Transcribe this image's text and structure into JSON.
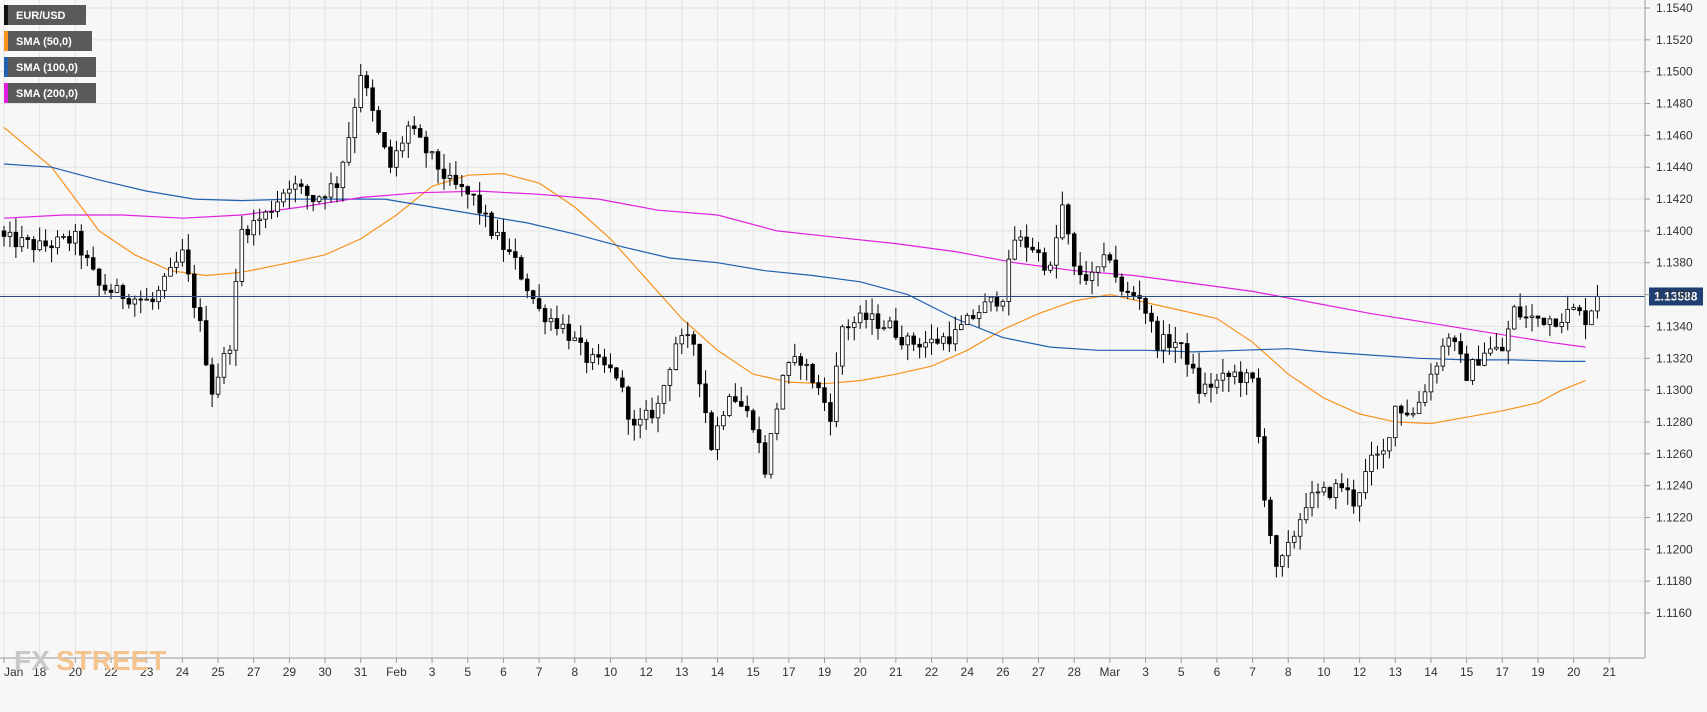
{
  "chart_data": {
    "type": "candlestick",
    "symbol": "EUR/USD",
    "timeframe": "4h",
    "ylim": [
      1.115,
      1.1545
    ],
    "y_ticks": [
      "1.1540",
      "1.1520",
      "1.1500",
      "1.1480",
      "1.1460",
      "1.1440",
      "1.1420",
      "1.1400",
      "1.1380",
      "1.1360",
      "1.1340",
      "1.1320",
      "1.1300",
      "1.1280",
      "1.1260",
      "1.1240",
      "1.1220",
      "1.1200",
      "1.1180",
      "1.1160"
    ],
    "y_tick_values": [
      1.154,
      1.152,
      1.15,
      1.148,
      1.146,
      1.144,
      1.142,
      1.14,
      1.138,
      1.136,
      1.134,
      1.132,
      1.13,
      1.128,
      1.126,
      1.124,
      1.122,
      1.12,
      1.118,
      1.116
    ],
    "x_ticks": [
      {
        "label": "Jan",
        "candle": 0
      },
      {
        "label": "18",
        "candle": 6
      },
      {
        "label": "20",
        "candle": 12
      },
      {
        "label": "22",
        "candle": 18
      },
      {
        "label": "23",
        "candle": 24
      },
      {
        "label": "24",
        "candle": 30
      },
      {
        "label": "25",
        "candle": 36
      },
      {
        "label": "27",
        "candle": 42
      },
      {
        "label": "29",
        "candle": 48
      },
      {
        "label": "30",
        "candle": 54
      },
      {
        "label": "31",
        "candle": 60
      },
      {
        "label": "Feb",
        "candle": 66
      },
      {
        "label": "3",
        "candle": 72
      },
      {
        "label": "5",
        "candle": 78
      },
      {
        "label": "6",
        "candle": 84
      },
      {
        "label": "7",
        "candle": 90
      },
      {
        "label": "8",
        "candle": 96
      },
      {
        "label": "10",
        "candle": 102
      },
      {
        "label": "12",
        "candle": 108
      },
      {
        "label": "13",
        "candle": 114
      },
      {
        "label": "14",
        "candle": 120
      },
      {
        "label": "15",
        "candle": 126
      },
      {
        "label": "17",
        "candle": 132
      },
      {
        "label": "19",
        "candle": 138
      },
      {
        "label": "20",
        "candle": 144
      },
      {
        "label": "21",
        "candle": 150
      },
      {
        "label": "22",
        "candle": 156
      },
      {
        "label": "24",
        "candle": 162
      },
      {
        "label": "26",
        "candle": 168
      },
      {
        "label": "27",
        "candle": 174
      },
      {
        "label": "28",
        "candle": 180
      },
      {
        "label": "Mar",
        "candle": 186
      },
      {
        "label": "3",
        "candle": 192
      },
      {
        "label": "5",
        "candle": 198
      },
      {
        "label": "6",
        "candle": 204
      },
      {
        "label": "7",
        "candle": 210
      },
      {
        "label": "8",
        "candle": 216
      },
      {
        "label": "10",
        "candle": 222
      },
      {
        "label": "12",
        "candle": 228
      },
      {
        "label": "13",
        "candle": 234
      },
      {
        "label": "14",
        "candle": 240
      },
      {
        "label": "15",
        "candle": 246
      },
      {
        "label": "17",
        "candle": 252
      },
      {
        "label": "19",
        "candle": 258
      },
      {
        "label": "20",
        "candle": 264
      },
      {
        "label": "21",
        "candle": 270
      }
    ],
    "grid": true,
    "current_price": "1.13588",
    "current_price_value": 1.13588,
    "legend": [
      {
        "label": "EUR/USD",
        "color": "#000000"
      },
      {
        "label": "SMA (50,0)",
        "color": "#f7931e"
      },
      {
        "label": "SMA (100,0)",
        "color": "#2060b0"
      },
      {
        "label": "SMA (200,0)",
        "color": "#e020e0"
      }
    ],
    "close_anchors": [
      [
        0,
        1.1395
      ],
      [
        6,
        1.139
      ],
      [
        12,
        1.1395
      ],
      [
        16,
        1.1365
      ],
      [
        20,
        1.136
      ],
      [
        25,
        1.1355
      ],
      [
        30,
        1.1385
      ],
      [
        33,
        1.134
      ],
      [
        35,
        1.13
      ],
      [
        38,
        1.133
      ],
      [
        40,
        1.14
      ],
      [
        44,
        1.141
      ],
      [
        48,
        1.143
      ],
      [
        52,
        1.142
      ],
      [
        56,
        1.143
      ],
      [
        58,
        1.146
      ],
      [
        60,
        1.15
      ],
      [
        63,
        1.146
      ],
      [
        65,
        1.144
      ],
      [
        68,
        1.1465
      ],
      [
        71,
        1.145
      ],
      [
        75,
        1.143
      ],
      [
        79,
        1.142
      ],
      [
        82,
        1.14
      ],
      [
        86,
        1.138
      ],
      [
        90,
        1.135
      ],
      [
        94,
        1.134
      ],
      [
        98,
        1.132
      ],
      [
        103,
        1.131
      ],
      [
        106,
        1.1275
      ],
      [
        110,
        1.129
      ],
      [
        113,
        1.133
      ],
      [
        116,
        1.133
      ],
      [
        119,
        1.1265
      ],
      [
        122,
        1.13
      ],
      [
        126,
        1.128
      ],
      [
        128,
        1.125
      ],
      [
        131,
        1.131
      ],
      [
        134,
        1.132
      ],
      [
        137,
        1.13
      ],
      [
        139,
        1.1285
      ],
      [
        141,
        1.134
      ],
      [
        145,
        1.1345
      ],
      [
        149,
        1.134
      ],
      [
        152,
        1.133
      ],
      [
        156,
        1.133
      ],
      [
        160,
        1.1335
      ],
      [
        164,
        1.135
      ],
      [
        168,
        1.136
      ],
      [
        170,
        1.1395
      ],
      [
        173,
        1.139
      ],
      [
        176,
        1.1375
      ],
      [
        178,
        1.1415
      ],
      [
        180,
        1.1375
      ],
      [
        183,
        1.137
      ],
      [
        186,
        1.1385
      ],
      [
        188,
        1.136
      ],
      [
        191,
        1.136
      ],
      [
        194,
        1.133
      ],
      [
        197,
        1.133
      ],
      [
        199,
        1.132
      ],
      [
        201,
        1.13
      ],
      [
        204,
        1.1305
      ],
      [
        207,
        1.131
      ],
      [
        210,
        1.1305
      ],
      [
        212,
        1.1235
      ],
      [
        214,
        1.1185
      ],
      [
        216,
        1.12
      ],
      [
        219,
        1.123
      ],
      [
        222,
        1.1235
      ],
      [
        225,
        1.124
      ],
      [
        227,
        1.123
      ],
      [
        230,
        1.1255
      ],
      [
        232,
        1.126
      ],
      [
        234,
        1.129
      ],
      [
        237,
        1.1285
      ],
      [
        240,
        1.131
      ],
      [
        243,
        1.1335
      ],
      [
        246,
        1.131
      ],
      [
        249,
        1.1325
      ],
      [
        252,
        1.1325
      ],
      [
        254,
        1.135
      ],
      [
        256,
        1.1345
      ],
      [
        258,
        1.1345
      ],
      [
        261,
        1.1345
      ],
      [
        264,
        1.135
      ],
      [
        266,
        1.1345
      ],
      [
        268,
        1.1359
      ]
    ],
    "sma50": [
      [
        0,
        1.1465
      ],
      [
        8,
        1.144
      ],
      [
        16,
        1.14
      ],
      [
        22,
        1.1385
      ],
      [
        28,
        1.1375
      ],
      [
        34,
        1.1372
      ],
      [
        40,
        1.1374
      ],
      [
        48,
        1.138
      ],
      [
        54,
        1.1385
      ],
      [
        60,
        1.1395
      ],
      [
        66,
        1.141
      ],
      [
        72,
        1.1428
      ],
      [
        78,
        1.1435
      ],
      [
        84,
        1.1436
      ],
      [
        90,
        1.143
      ],
      [
        96,
        1.1415
      ],
      [
        102,
        1.1395
      ],
      [
        108,
        1.137
      ],
      [
        114,
        1.1345
      ],
      [
        120,
        1.1325
      ],
      [
        126,
        1.131
      ],
      [
        132,
        1.1305
      ],
      [
        138,
        1.1304
      ],
      [
        144,
        1.1306
      ],
      [
        150,
        1.131
      ],
      [
        156,
        1.1315
      ],
      [
        162,
        1.1325
      ],
      [
        168,
        1.1338
      ],
      [
        174,
        1.1348
      ],
      [
        180,
        1.1356
      ],
      [
        186,
        1.136
      ],
      [
        192,
        1.1355
      ],
      [
        198,
        1.135
      ],
      [
        204,
        1.1345
      ],
      [
        210,
        1.133
      ],
      [
        216,
        1.131
      ],
      [
        222,
        1.1295
      ],
      [
        228,
        1.1285
      ],
      [
        234,
        1.128
      ],
      [
        240,
        1.1279
      ],
      [
        246,
        1.1283
      ],
      [
        252,
        1.1287
      ],
      [
        258,
        1.1292
      ],
      [
        262,
        1.13
      ],
      [
        266,
        1.1306
      ]
    ],
    "sma100": [
      [
        0,
        1.1442
      ],
      [
        8,
        1.144
      ],
      [
        16,
        1.1432
      ],
      [
        24,
        1.1425
      ],
      [
        32,
        1.142
      ],
      [
        40,
        1.1419
      ],
      [
        48,
        1.142
      ],
      [
        56,
        1.142
      ],
      [
        64,
        1.142
      ],
      [
        72,
        1.1415
      ],
      [
        80,
        1.141
      ],
      [
        88,
        1.1405
      ],
      [
        96,
        1.1398
      ],
      [
        104,
        1.139
      ],
      [
        112,
        1.1383
      ],
      [
        120,
        1.138
      ],
      [
        128,
        1.1375
      ],
      [
        136,
        1.1372
      ],
      [
        144,
        1.1368
      ],
      [
        152,
        1.136
      ],
      [
        160,
        1.1345
      ],
      [
        168,
        1.1333
      ],
      [
        176,
        1.1327
      ],
      [
        184,
        1.1325
      ],
      [
        192,
        1.1325
      ],
      [
        200,
        1.1324
      ],
      [
        208,
        1.1325
      ],
      [
        216,
        1.1326
      ],
      [
        222,
        1.1324
      ],
      [
        230,
        1.1322
      ],
      [
        238,
        1.132
      ],
      [
        246,
        1.1319
      ],
      [
        254,
        1.1319
      ],
      [
        262,
        1.1318
      ],
      [
        266,
        1.1318
      ]
    ],
    "sma200": [
      [
        0,
        1.1408
      ],
      [
        10,
        1.141
      ],
      [
        20,
        1.141
      ],
      [
        30,
        1.1408
      ],
      [
        40,
        1.141
      ],
      [
        50,
        1.1415
      ],
      [
        60,
        1.1421
      ],
      [
        70,
        1.1424
      ],
      [
        80,
        1.1425
      ],
      [
        90,
        1.1423
      ],
      [
        100,
        1.142
      ],
      [
        110,
        1.1413
      ],
      [
        120,
        1.141
      ],
      [
        130,
        1.14
      ],
      [
        140,
        1.1396
      ],
      [
        150,
        1.1392
      ],
      [
        160,
        1.1387
      ],
      [
        170,
        1.138
      ],
      [
        180,
        1.1375
      ],
      [
        190,
        1.1372
      ],
      [
        200,
        1.1367
      ],
      [
        210,
        1.1362
      ],
      [
        220,
        1.1355
      ],
      [
        230,
        1.1348
      ],
      [
        240,
        1.1342
      ],
      [
        250,
        1.1336
      ],
      [
        260,
        1.133
      ],
      [
        266,
        1.1327
      ]
    ]
  },
  "watermark": {
    "fx": "FX",
    "street": "STREET"
  }
}
